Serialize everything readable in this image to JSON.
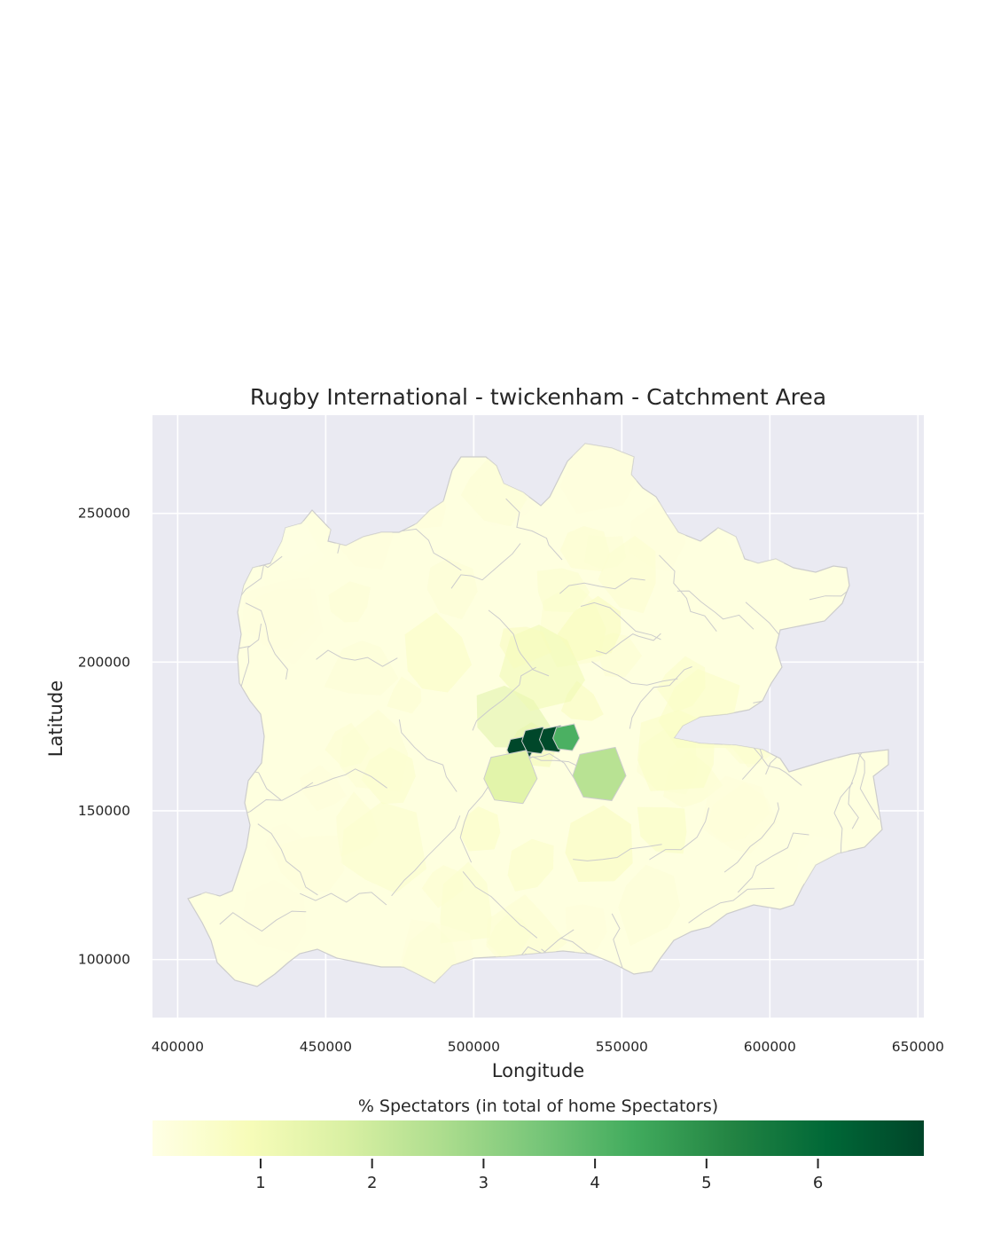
{
  "chart_data": {
    "type": "choropleth",
    "title": "Rugby International - twickenham - Catchment Area",
    "xlabel": "Longitude",
    "ylabel": "Latitude",
    "xlim": [
      391500,
      652000
    ],
    "ylim": [
      80500,
      283000
    ],
    "x_ticks": [
      400000,
      450000,
      500000,
      550000,
      600000,
      650000
    ],
    "y_ticks": [
      100000,
      150000,
      200000,
      250000
    ],
    "grid": true,
    "background": "#eaeaf2",
    "region_edge_color": "#cccccc",
    "colorbar": {
      "label": "% Spectators (in total of home Spectators)",
      "colormap": "YlGn",
      "range": [
        0.03,
        6.95
      ],
      "ticks": [
        1,
        2,
        3,
        4,
        5,
        6
      ],
      "orientation": "horizontal",
      "stops": [
        "#ffffe5",
        "#f7fcb9",
        "#d9f0a3",
        "#addd8e",
        "#78c679",
        "#41ab5d",
        "#238443",
        "#006837",
        "#004529"
      ]
    },
    "highlighted_regions": [
      {
        "x": 516000,
        "y": 171000,
        "value": 6.9
      },
      {
        "x": 521000,
        "y": 174000,
        "value": 6.9
      },
      {
        "x": 527000,
        "y": 174500,
        "value": 6.8
      },
      {
        "x": 531500,
        "y": 175000,
        "value": 4.2
      },
      {
        "x": 543000,
        "y": 163000,
        "value": 2.4
      },
      {
        "x": 513000,
        "y": 162000,
        "value": 1.5
      }
    ]
  }
}
